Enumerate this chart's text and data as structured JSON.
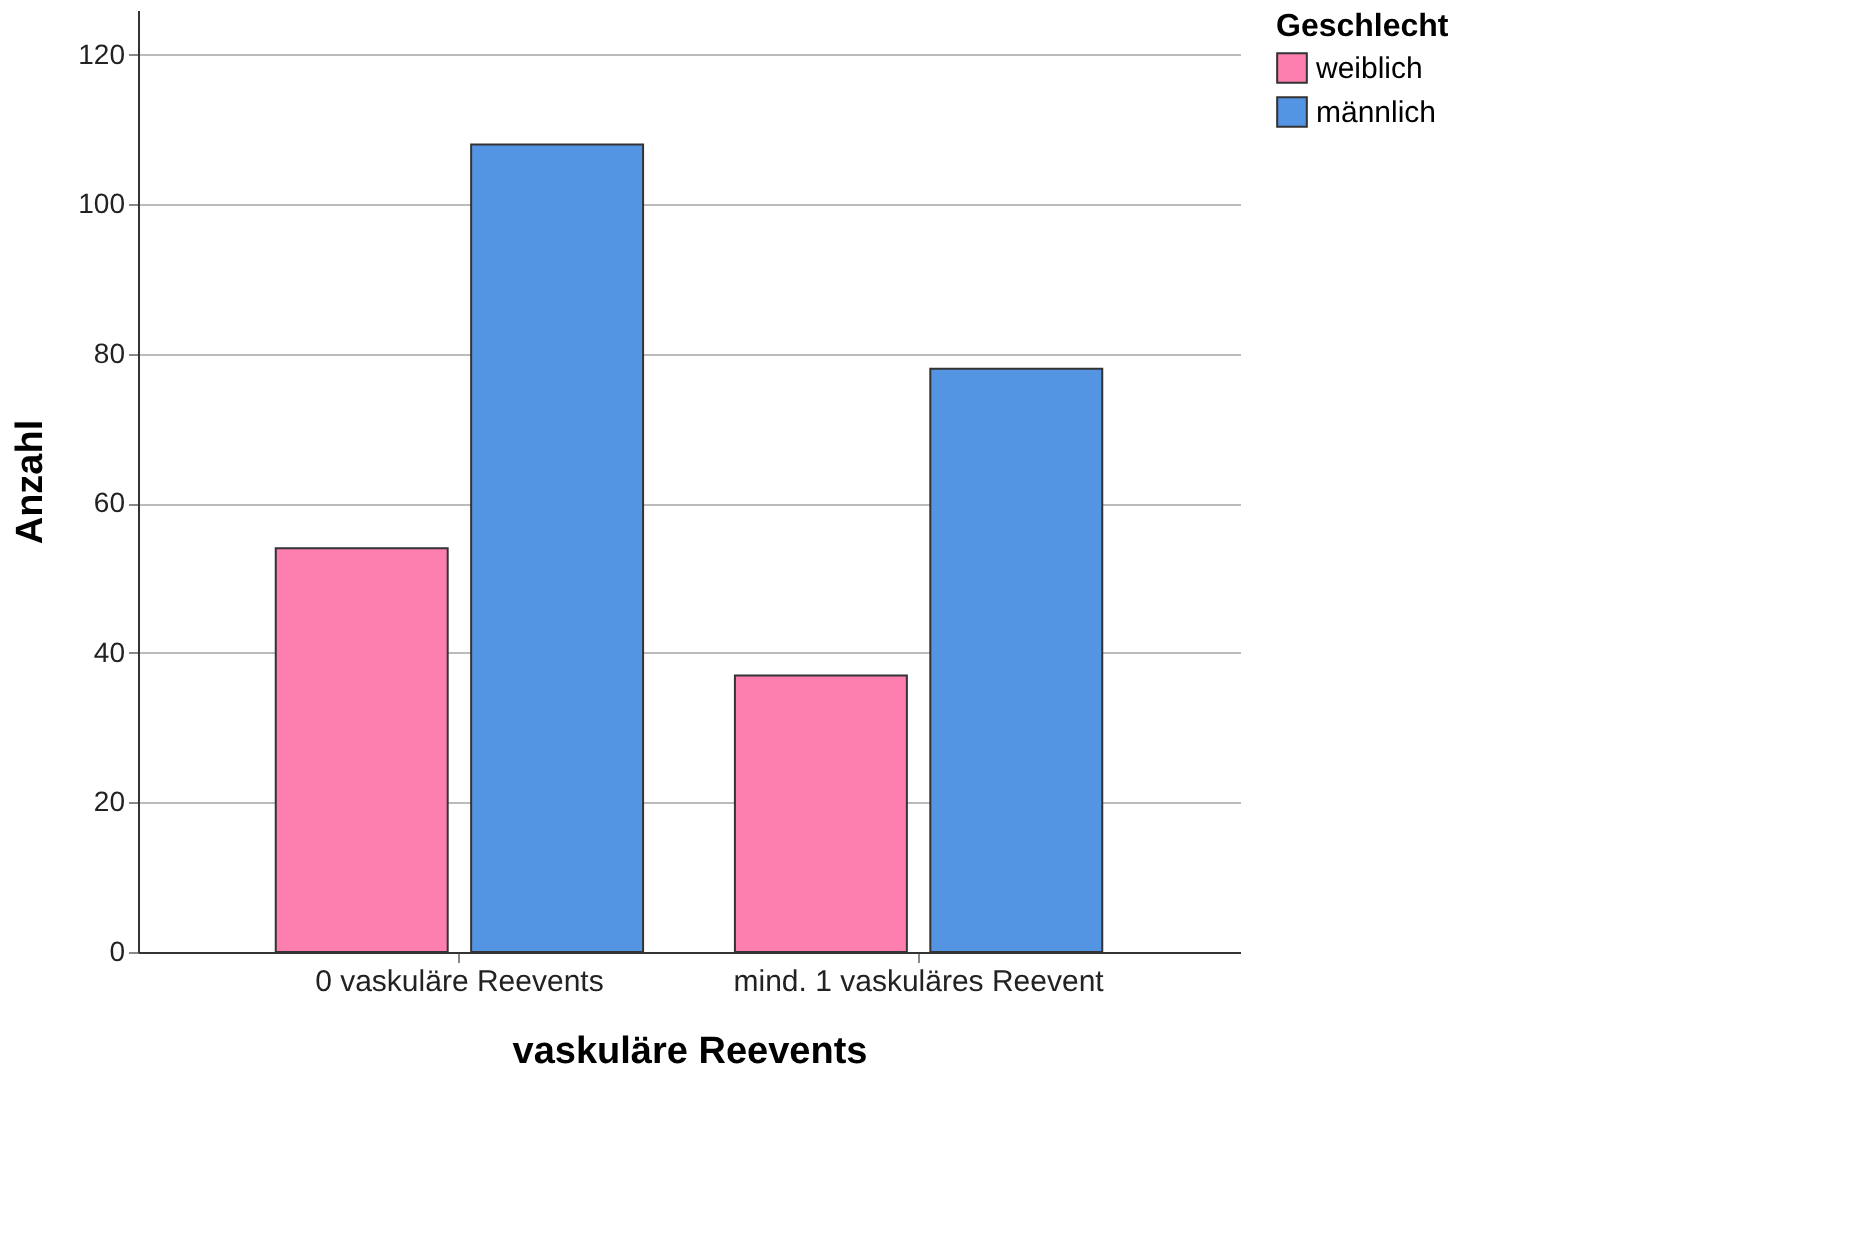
{
  "chart_data": {
    "type": "bar",
    "xlabel": "vaskuläre Reevents",
    "ylabel": "Anzahl",
    "legend_title": "Geschlecht",
    "categories": [
      "0 vaskuläre Reevents",
      "mind. 1 vaskuläres Reevent"
    ],
    "series": [
      {
        "name": "weiblich",
        "color": "#fd7fb0",
        "values": [
          54,
          37
        ]
      },
      {
        "name": "männlich",
        "color": "#5495e3",
        "values": [
          108,
          78
        ]
      }
    ],
    "ylim": [
      0,
      126
    ],
    "yticks": [
      0,
      20,
      40,
      60,
      80,
      100,
      120
    ],
    "grid": "y",
    "legend": "top right"
  }
}
